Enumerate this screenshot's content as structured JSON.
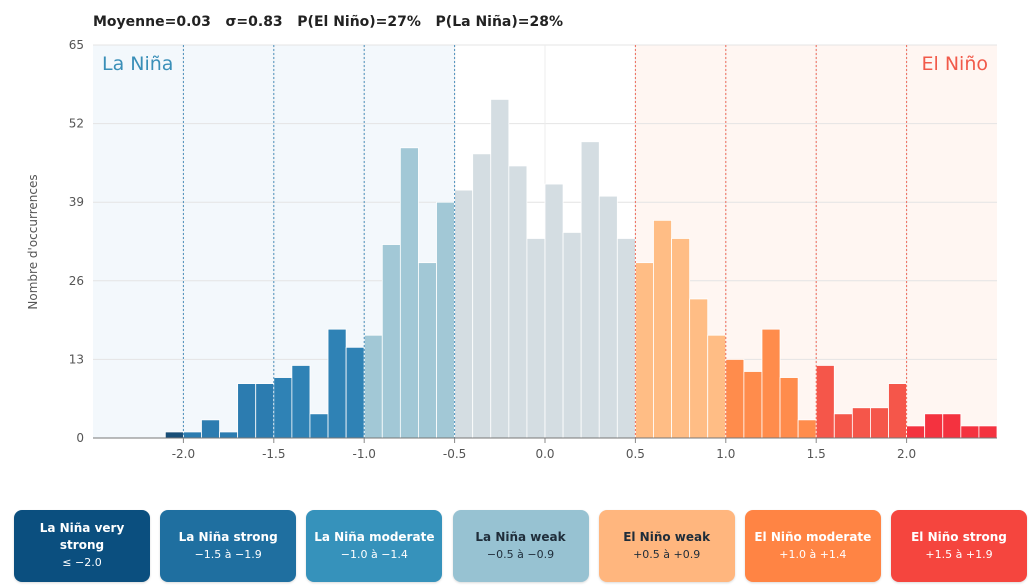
{
  "stats_line": "Moyenne=0.03   σ=0.83   P(El Niño)=27%   P(La Niña)=28%",
  "legend_items": [
    {
      "label": "La Niña very strong",
      "range": "≤ −2.0",
      "bg": "#0b4f7f",
      "fg": "#ffffff"
    },
    {
      "label": "La Niña strong",
      "range": "−1.5 à −1.9",
      "bg": "#1f6fa0",
      "fg": "#ffffff"
    },
    {
      "label": "La Niña moderate",
      "range": "−1.0 à −1.4",
      "bg": "#3692bb",
      "fg": "#ffffff"
    },
    {
      "label": "La Niña weak",
      "range": "−0.5 à −0.9",
      "bg": "#97c2d2",
      "fg": "#1f2d3a"
    },
    {
      "label": "El Niño weak",
      "range": "+0.5 à +0.9",
      "bg": "#ffb67e",
      "fg": "#1f2d3a"
    },
    {
      "label": "El Niño moderate",
      "range": "+1.0 à +1.4",
      "bg": "#ff8444",
      "fg": "#ffffff"
    },
    {
      "label": "El Niño strong",
      "range": "+1.5 à +1.9",
      "bg": "#f5453e",
      "fg": "#ffffff"
    }
  ],
  "chart_data": {
    "type": "bar",
    "ylabel": "Nombre d'occurrences",
    "xlabel": "",
    "xlim": [
      -2.5,
      2.5
    ],
    "ylim": [
      0,
      65
    ],
    "yticks": [
      0,
      13,
      26,
      39,
      52,
      65
    ],
    "xticks": [
      -2.0,
      -1.5,
      -1.0,
      -0.5,
      0.0,
      0.5,
      1.0,
      1.5,
      2.0
    ],
    "xtick_labels": [
      "-2.0",
      "-1.5",
      "-1.0",
      "-0.5",
      "0.0",
      "0.5",
      "1.0",
      "1.5",
      "2.0"
    ],
    "grid": true,
    "bin_width": 0.1,
    "bin_starts": [
      -2.1,
      -2.0,
      -1.9,
      -1.8,
      -1.7,
      -1.6,
      -1.5,
      -1.4,
      -1.3,
      -1.2,
      -1.1,
      -1.0,
      -0.9,
      -0.8,
      -0.7,
      -0.6,
      -0.5,
      -0.4,
      -0.3,
      -0.2,
      -0.1,
      0.0,
      0.1,
      0.2,
      0.3,
      0.4,
      0.5,
      0.6,
      0.7,
      0.8,
      0.9,
      1.0,
      1.1,
      1.2,
      1.3,
      1.4,
      1.5,
      1.6,
      1.7,
      1.8,
      1.9,
      2.0,
      2.1,
      2.2,
      2.3,
      2.4
    ],
    "values": [
      1,
      1,
      3,
      1,
      9,
      9,
      10,
      12,
      4,
      18,
      15,
      17,
      32,
      48,
      29,
      39,
      41,
      47,
      56,
      45,
      33,
      42,
      34,
      49,
      40,
      33,
      29,
      36,
      33,
      23,
      17,
      13,
      11,
      18,
      10,
      3,
      12,
      4,
      5,
      5,
      9,
      2,
      4,
      4,
      2,
      2
    ],
    "thresholds": [
      -2.0,
      -1.5,
      -1.0,
      -0.5,
      0.5,
      1.0,
      1.5,
      2.0
    ],
    "region_labels": {
      "left": "La Niña",
      "right": "El Niño"
    },
    "colors": {
      "very_strong_nina": "#184e77",
      "strong_nina": "#2c7cb0",
      "moderate_nina": "#3c99c2",
      "weak_nina": "#a2c8d6",
      "neutral": "#d4dde2",
      "weak_nino": "#ffbd85",
      "moderate_nino": "#ff8c4c",
      "strong_nino": "#f5564a",
      "very_strong_nino": "#f4323f"
    }
  }
}
